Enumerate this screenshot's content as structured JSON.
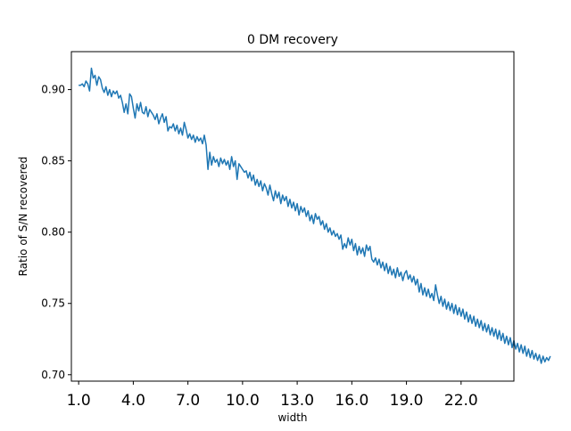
{
  "chart_data": {
    "type": "line",
    "title": "0 DM recovery",
    "xlabel": "width",
    "ylabel": "Ratio of S/N recovered",
    "xlim": [
      0.6,
      24.9
    ],
    "ylim": [
      0.6955,
      0.9266
    ],
    "x_ticks": [
      1,
      4,
      7,
      10,
      13,
      16,
      19,
      22
    ],
    "x_tick_labels": [
      "1.0",
      "4.0",
      "7.0",
      "10.0",
      "13.0",
      "16.0",
      "19.0",
      "22.0"
    ],
    "y_ticks": [
      0.7,
      0.75,
      0.8,
      0.85,
      0.9
    ],
    "y_tick_labels": [
      "0.70",
      "0.75",
      "0.80",
      "0.85",
      "0.90"
    ],
    "grid": false,
    "legend": "none",
    "line_color": "#1f77b4",
    "series": [
      {
        "x_start": 1.0,
        "x_step": 0.1,
        "values": [
          0.903,
          0.903,
          0.904,
          0.902,
          0.906,
          0.904,
          0.899,
          0.915,
          0.908,
          0.91,
          0.903,
          0.909,
          0.907,
          0.901,
          0.898,
          0.902,
          0.896,
          0.9,
          0.895,
          0.899,
          0.897,
          0.899,
          0.894,
          0.896,
          0.891,
          0.884,
          0.89,
          0.883,
          0.897,
          0.895,
          0.887,
          0.88,
          0.89,
          0.885,
          0.891,
          0.884,
          0.883,
          0.888,
          0.881,
          0.886,
          0.884,
          0.882,
          0.879,
          0.883,
          0.876,
          0.88,
          0.883,
          0.877,
          0.881,
          0.871,
          0.874,
          0.873,
          0.876,
          0.871,
          0.875,
          0.869,
          0.873,
          0.868,
          0.877,
          0.872,
          0.866,
          0.869,
          0.865,
          0.868,
          0.863,
          0.867,
          0.864,
          0.866,
          0.862,
          0.868,
          0.861,
          0.844,
          0.856,
          0.847,
          0.853,
          0.849,
          0.851,
          0.846,
          0.852,
          0.848,
          0.851,
          0.847,
          0.85,
          0.844,
          0.853,
          0.846,
          0.85,
          0.837,
          0.848,
          0.846,
          0.844,
          0.842,
          0.843,
          0.838,
          0.842,
          0.836,
          0.84,
          0.833,
          0.837,
          0.832,
          0.836,
          0.829,
          0.834,
          0.831,
          0.826,
          0.833,
          0.827,
          0.822,
          0.829,
          0.824,
          0.828,
          0.82,
          0.826,
          0.822,
          0.825,
          0.818,
          0.823,
          0.817,
          0.821,
          0.815,
          0.82,
          0.812,
          0.818,
          0.814,
          0.817,
          0.811,
          0.815,
          0.808,
          0.812,
          0.806,
          0.813,
          0.809,
          0.811,
          0.805,
          0.808,
          0.802,
          0.806,
          0.8,
          0.803,
          0.798,
          0.801,
          0.797,
          0.799,
          0.795,
          0.798,
          0.788,
          0.792,
          0.789,
          0.796,
          0.791,
          0.795,
          0.787,
          0.792,
          0.784,
          0.79,
          0.785,
          0.789,
          0.783,
          0.791,
          0.787,
          0.79,
          0.781,
          0.779,
          0.782,
          0.777,
          0.781,
          0.775,
          0.779,
          0.773,
          0.778,
          0.771,
          0.776,
          0.77,
          0.774,
          0.768,
          0.775,
          0.769,
          0.772,
          0.766,
          0.771,
          0.773,
          0.767,
          0.77,
          0.765,
          0.769,
          0.763,
          0.767,
          0.758,
          0.764,
          0.756,
          0.761,
          0.755,
          0.76,
          0.754,
          0.757,
          0.752,
          0.763,
          0.756,
          0.75,
          0.755,
          0.748,
          0.753,
          0.746,
          0.751,
          0.745,
          0.75,
          0.743,
          0.749,
          0.742,
          0.747,
          0.741,
          0.746,
          0.739,
          0.744,
          0.737,
          0.742,
          0.736,
          0.741,
          0.734,
          0.739,
          0.733,
          0.738,
          0.731,
          0.736,
          0.73,
          0.735,
          0.728,
          0.733,
          0.727,
          0.732,
          0.725,
          0.731,
          0.724,
          0.729,
          0.722,
          0.727,
          0.721,
          0.726,
          0.719,
          0.724,
          0.718,
          0.722,
          0.716,
          0.721,
          0.715,
          0.72,
          0.713,
          0.718,
          0.712,
          0.717,
          0.711,
          0.715,
          0.71,
          0.714,
          0.708,
          0.713,
          0.709,
          0.712,
          0.71,
          0.713
        ]
      }
    ]
  }
}
